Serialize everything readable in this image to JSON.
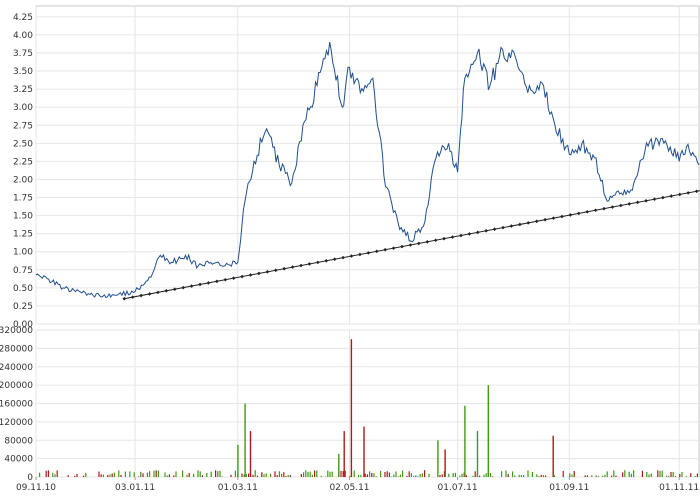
{
  "chart_data": [
    {
      "type": "line",
      "title": "",
      "xlabel": "",
      "ylabel": "",
      "x_dates": [
        "09.11.10",
        "03.01.11",
        "01.03.11",
        "02.05.11",
        "01.07.11",
        "01.09.11",
        "01.11.11"
      ],
      "ylim": [
        0,
        4.4
      ],
      "yticks": [
        0.0,
        0.25,
        0.5,
        0.75,
        1.0,
        1.25,
        1.5,
        1.75,
        2.0,
        2.25,
        2.5,
        2.75,
        3.0,
        3.25,
        3.5,
        3.75,
        4.0,
        4.25
      ],
      "ytick_labels": [
        "0.00",
        "0.25",
        "0.50",
        "0.75",
        "1.00",
        "1.25",
        "1.50",
        "1.75",
        "2.00",
        "2.25",
        "2.50",
        "2.75",
        "3.00",
        "3.25",
        "3.50",
        "3.75",
        "4.00",
        "4.25"
      ],
      "grid": true,
      "series": [
        {
          "role": "price",
          "color": "#1f4f8f",
          "x": [
            "09.11.10",
            "16.11.10",
            "24.11.10",
            "01.12.10",
            "08.12.10",
            "16.12.10",
            "24.12.10",
            "03.01.11",
            "10.01.11",
            "17.01.11",
            "24.01.11",
            "31.01.11",
            "07.02.11",
            "14.02.11",
            "21.02.11",
            "01.03.11",
            "05.03.11",
            "10.03.11",
            "17.03.11",
            "24.03.11",
            "31.03.11",
            "07.04.11",
            "14.04.11",
            "21.04.11",
            "28.04.11",
            "02.05.11",
            "08.05.11",
            "15.05.11",
            "22.05.11",
            "29.05.11",
            "05.06.11",
            "12.06.11",
            "19.06.11",
            "26.06.11",
            "01.07.11",
            "05.07.11",
            "12.07.11",
            "19.07.11",
            "26.07.11",
            "02.08.11",
            "09.08.11",
            "16.08.11",
            "23.08.11",
            "01.09.11",
            "08.09.11",
            "15.09.11",
            "22.09.11",
            "29.09.11",
            "06.10.11",
            "13.10.11",
            "20.10.11",
            "27.10.11",
            "01.11.11",
            "05.11.11",
            "12.11.11"
          ],
          "values": [
            0.68,
            0.62,
            0.5,
            0.45,
            0.42,
            0.38,
            0.4,
            0.45,
            0.6,
            0.95,
            0.85,
            0.95,
            0.8,
            0.85,
            0.8,
            0.85,
            1.7,
            2.25,
            2.7,
            2.2,
            1.95,
            2.8,
            3.3,
            3.9,
            3.0,
            3.55,
            3.2,
            3.4,
            1.9,
            1.4,
            1.15,
            1.35,
            2.3,
            2.5,
            2.1,
            3.4,
            3.75,
            3.3,
            3.8,
            3.7,
            3.2,
            3.35,
            2.85,
            2.35,
            2.5,
            2.3,
            1.7,
            1.8,
            1.85,
            2.4,
            2.55,
            2.45,
            2.25,
            2.45,
            2.2
          ]
        },
        {
          "role": "trendline",
          "color": "#222222",
          "x": [
            "28.12.10",
            "20.11.11"
          ],
          "values": [
            0.35,
            1.88
          ]
        }
      ]
    },
    {
      "type": "bar",
      "title": "",
      "xlabel": "",
      "ylabel": "",
      "ylim": [
        0,
        320000
      ],
      "yticks": [
        0,
        40000,
        80000,
        120000,
        160000,
        200000,
        240000,
        280000,
        320000
      ],
      "ytick_labels": [
        "0",
        "40000",
        "80000",
        "120000",
        "160000",
        "200000",
        "240000",
        "280000",
        "320000"
      ],
      "up_color": "#3f9a18",
      "down_color": "#b01818",
      "volume_days": [
        "01.03.11",
        "05.03.11",
        "08.03.11",
        "26.04.11",
        "29.04.11",
        "03.05.11",
        "10.05.11",
        "20.06.11",
        "24.06.11",
        "05.07.11",
        "12.07.11",
        "18.07.11",
        "23.08.11"
      ],
      "values": [
        70000,
        160000,
        100000,
        50000,
        100000,
        300000,
        110000,
        80000,
        60000,
        155000,
        100000,
        200000,
        90000
      ],
      "directions": [
        "up",
        "up",
        "down",
        "up",
        "down",
        "down",
        "down",
        "up",
        "down",
        "up",
        "up",
        "up",
        "down"
      ]
    }
  ]
}
